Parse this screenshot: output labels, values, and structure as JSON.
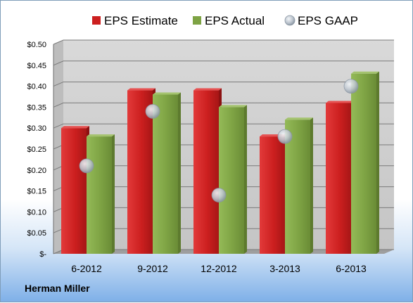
{
  "company": "Herman Miller",
  "chart_data": {
    "type": "bar",
    "categories": [
      "6-2012",
      "9-2012",
      "12-2012",
      "3-2013",
      "6-2013"
    ],
    "series": [
      {
        "name": "EPS Estimate",
        "kind": "bar",
        "color": "#cc1f1f",
        "values": [
          0.3,
          0.39,
          0.39,
          0.28,
          0.36
        ]
      },
      {
        "name": "EPS Actual",
        "kind": "bar",
        "color": "#7ea344",
        "values": [
          0.28,
          0.38,
          0.35,
          0.32,
          0.43
        ]
      },
      {
        "name": "EPS GAAP",
        "kind": "marker",
        "color": "#a9b4c0",
        "values": [
          0.21,
          0.34,
          0.14,
          0.28,
          0.4
        ]
      }
    ],
    "yticks": [
      "$-",
      "$0.05",
      "$0.10",
      "$0.15",
      "$0.20",
      "$0.25",
      "$0.30",
      "$0.35",
      "$0.40",
      "$0.45",
      "$0.50"
    ],
    "ylim": [
      0,
      0.5
    ],
    "grid": true,
    "legend_position": "top"
  }
}
